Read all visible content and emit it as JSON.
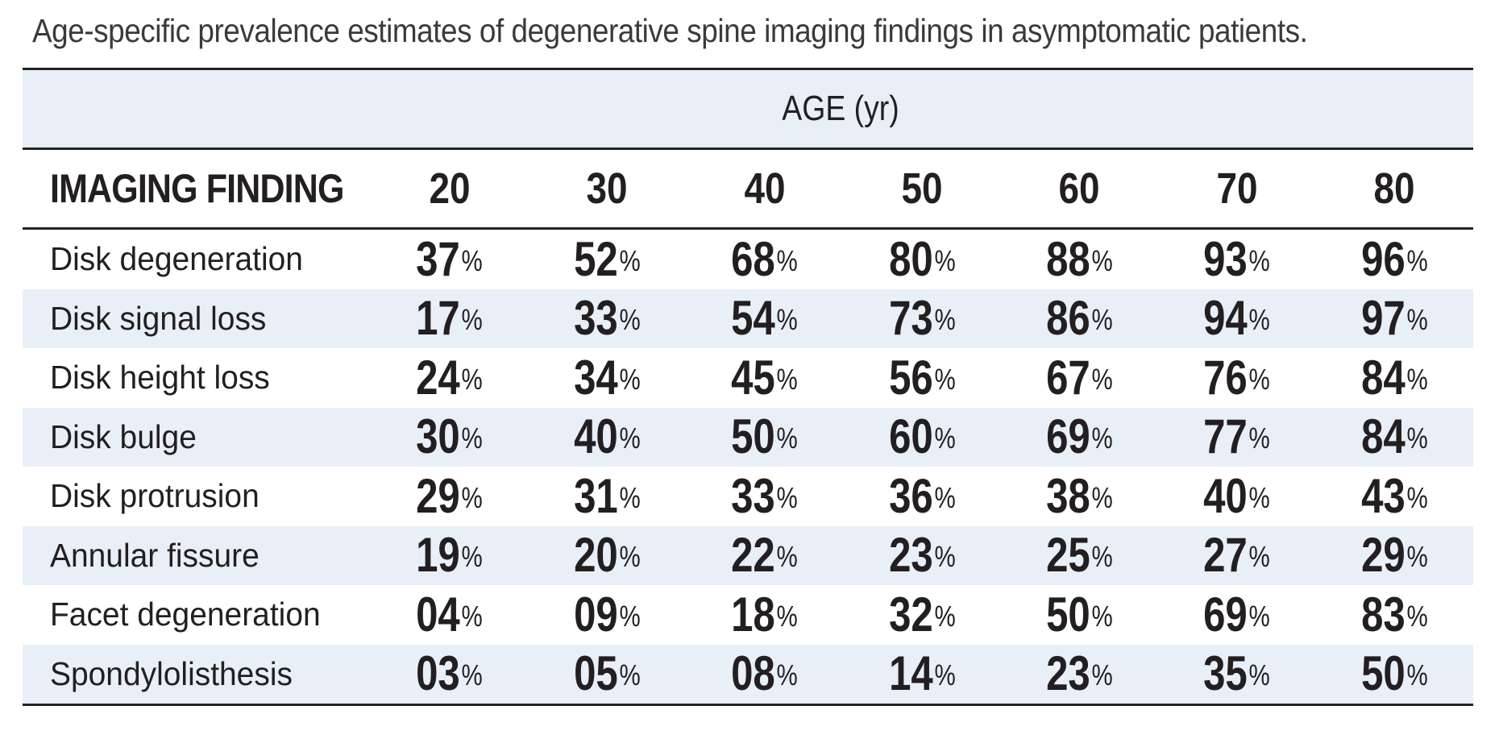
{
  "title": "Age-specific prevalence estimates of degenerative spine imaging findings in asymptomatic patients.",
  "table": {
    "age_band_label": "AGE (yr)",
    "finding_column_header": "IMAGING FINDING",
    "age_columns": [
      "20",
      "30",
      "40",
      "50",
      "60",
      "70",
      "80"
    ],
    "percent_symbol": "%",
    "rows": [
      {
        "label": "Disk degeneration",
        "values": [
          "37",
          "52",
          "68",
          "80",
          "88",
          "93",
          "96"
        ]
      },
      {
        "label": "Disk signal loss",
        "values": [
          "17",
          "33",
          "54",
          "73",
          "86",
          "94",
          "97"
        ]
      },
      {
        "label": "Disk height loss",
        "values": [
          "24",
          "34",
          "45",
          "56",
          "67",
          "76",
          "84"
        ]
      },
      {
        "label": "Disk bulge",
        "values": [
          "30",
          "40",
          "50",
          "60",
          "69",
          "77",
          "84"
        ]
      },
      {
        "label": "Disk protrusion",
        "values": [
          "29",
          "31",
          "33",
          "36",
          "38",
          "40",
          "43"
        ]
      },
      {
        "label": "Annular fissure",
        "values": [
          "19",
          "20",
          "22",
          "23",
          "25",
          "27",
          "29"
        ]
      },
      {
        "label": "Facet degeneration",
        "values": [
          "04",
          "09",
          "18",
          "32",
          "50",
          "69",
          "83"
        ]
      },
      {
        "label": "Spondylolisthesis",
        "values": [
          "03",
          "05",
          "08",
          "14",
          "23",
          "35",
          "50"
        ]
      }
    ]
  },
  "colors": {
    "band_blue": "#e8eff7",
    "rule_dark": "#232323",
    "text_dark": "#231f20",
    "title_gray": "#3a3a3a"
  },
  "chart_data": {
    "type": "table",
    "title": "Age-specific prevalence estimates of degenerative spine imaging findings in asymptomatic patients.",
    "xlabel": "AGE (yr)",
    "x": [
      20,
      30,
      40,
      50,
      60,
      70,
      80
    ],
    "units": "%",
    "series": [
      {
        "name": "Disk degeneration",
        "values": [
          37,
          52,
          68,
          80,
          88,
          93,
          96
        ]
      },
      {
        "name": "Disk signal loss",
        "values": [
          17,
          33,
          54,
          73,
          86,
          94,
          97
        ]
      },
      {
        "name": "Disk height loss",
        "values": [
          24,
          34,
          45,
          56,
          67,
          76,
          84
        ]
      },
      {
        "name": "Disk bulge",
        "values": [
          30,
          40,
          50,
          60,
          69,
          77,
          84
        ]
      },
      {
        "name": "Disk protrusion",
        "values": [
          29,
          31,
          33,
          36,
          38,
          40,
          43
        ]
      },
      {
        "name": "Annular fissure",
        "values": [
          19,
          20,
          22,
          23,
          25,
          27,
          29
        ]
      },
      {
        "name": "Facet degeneration",
        "values": [
          4,
          9,
          18,
          32,
          50,
          69,
          83
        ]
      },
      {
        "name": "Spondylolisthesis",
        "values": [
          3,
          5,
          8,
          14,
          23,
          35,
          50
        ]
      }
    ],
    "layout": {
      "row_striping": "alternating light blue",
      "gridlines": false,
      "legend": "none"
    }
  }
}
